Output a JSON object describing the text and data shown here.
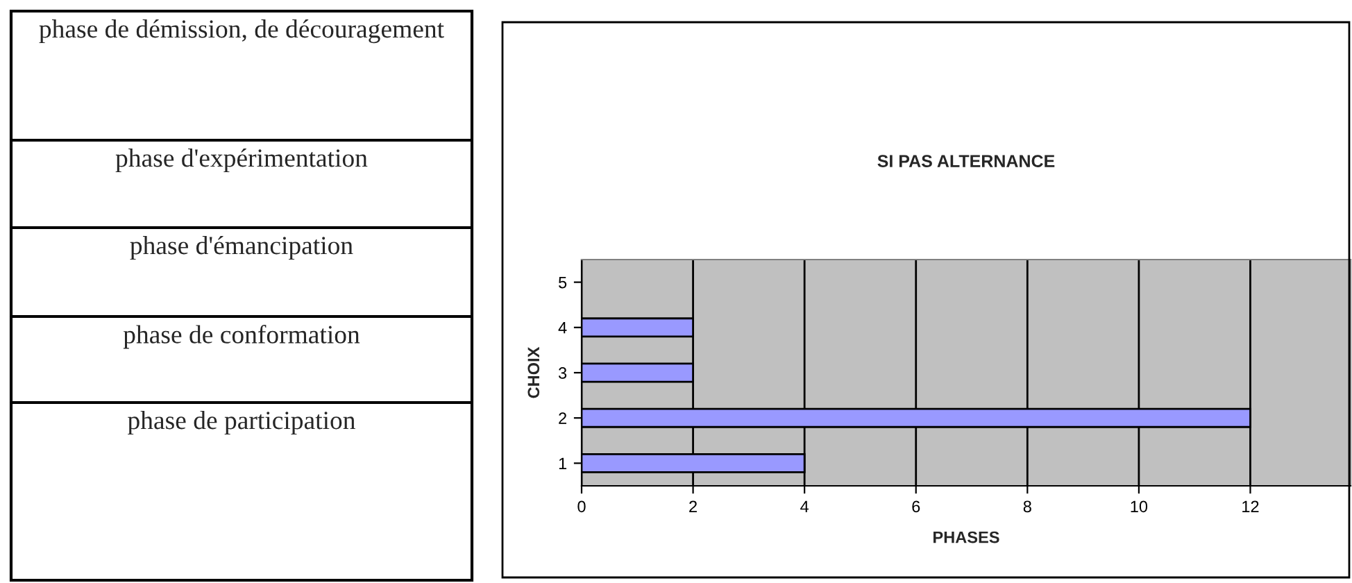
{
  "chart_data": {
    "type": "bar",
    "orientation": "horizontal",
    "title": "SI PAS ALTERNANCE",
    "xlabel": "PHASES",
    "ylabel": "CHOIX",
    "categories": [
      "5",
      "4",
      "3",
      "2",
      "1"
    ],
    "series": [
      {
        "color": "#9999ff",
        "values": [
          null,
          2,
          2,
          12,
          4
        ]
      }
    ],
    "xlim": [
      0,
      13.8
    ],
    "xticks": [
      0,
      2,
      4,
      6,
      8,
      10,
      12
    ],
    "grid": "x",
    "legend": false,
    "annotations": [
      "phase de démission, de découragement",
      "phase d'expérimentation",
      "phase d'émancipation",
      "phase de conformation",
      "phase de participation"
    ]
  }
}
